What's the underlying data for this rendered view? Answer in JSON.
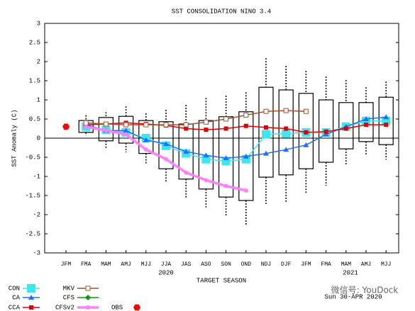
{
  "chart_data": {
    "type": "box-line",
    "title": "SST CONSOLIDATION NINO 3.4",
    "y_label": "SST Anomaly (C)",
    "x_label": "TARGET SEASON",
    "annotations": [
      "2020",
      "2021",
      "Sun 30-APR 2020",
      "微信号: YouDock"
    ],
    "categories": [
      "JFM",
      "FMA",
      "MAM",
      "AMJ",
      "MJJ",
      "JJA",
      "JAS",
      "ASO",
      "SON",
      "OND",
      "NDJ",
      "DJF",
      "JFM",
      "FMA",
      "MAM",
      "AMJ",
      "MJJ"
    ],
    "ylim": [
      -3,
      3
    ],
    "yticks": [
      -3,
      -2.5,
      -2,
      -1.5,
      -1,
      -0.5,
      0,
      0.5,
      1,
      1.5,
      2,
      2.5,
      3
    ],
    "boxes": {
      "high": [
        null,
        0.6,
        0.68,
        0.83,
        0.65,
        0.74,
        0.87,
        1.05,
        1.11,
        1.2,
        2.09,
        1.89,
        1.76,
        1.61,
        1.52,
        1.33,
        1.48
      ],
      "q3": [
        null,
        0.46,
        0.54,
        0.57,
        0.46,
        0.43,
        0.37,
        0.46,
        0.56,
        0.69,
        1.33,
        1.26,
        1.17,
        1.0,
        0.93,
        0.93,
        1.07
      ],
      "q1": [
        null,
        0.15,
        -0.07,
        -0.13,
        -0.4,
        -0.8,
        -1.07,
        -1.33,
        -1.54,
        -1.63,
        -1.02,
        -0.96,
        -0.8,
        -0.63,
        -0.28,
        -0.09,
        -0.17
      ],
      "low": [
        null,
        0.07,
        -0.28,
        -0.37,
        -0.7,
        -1.17,
        -1.57,
        -1.81,
        -2.04,
        -2.28,
        -1.72,
        -1.67,
        -1.43,
        -1.24,
        -0.69,
        -0.46,
        -0.56
      ]
    },
    "series": [
      {
        "name": "CON",
        "color": "#3ee6f0",
        "marker": "square",
        "values": [
          null,
          0.3,
          0.22,
          0.15,
          0.0,
          -0.2,
          -0.4,
          -0.55,
          -0.6,
          -0.55,
          0.1,
          0.12,
          0.15,
          0.15,
          0.3,
          0.45,
          0.45
        ]
      },
      {
        "name": "CA",
        "color": "#1e6fff",
        "marker": "triangle",
        "values": [
          null,
          0.35,
          0.2,
          0.2,
          -0.05,
          -0.15,
          -0.35,
          -0.45,
          -0.52,
          -0.48,
          -0.4,
          -0.3,
          -0.18,
          0.1,
          0.3,
          0.5,
          0.55
        ]
      },
      {
        "name": "CCA",
        "color": "#e00000",
        "marker": "small-square",
        "values": [
          null,
          0.35,
          0.37,
          0.4,
          0.37,
          0.33,
          0.25,
          0.22,
          0.25,
          0.32,
          0.28,
          0.25,
          0.15,
          0.17,
          0.25,
          0.35,
          0.35
        ]
      },
      {
        "name": "MKV",
        "color": "#a0522d",
        "marker": "open-square",
        "values": [
          null,
          0.4,
          0.37,
          0.35,
          0.35,
          0.35,
          0.35,
          0.42,
          0.5,
          0.6,
          0.7,
          0.72,
          0.7,
          null,
          null,
          null,
          null
        ]
      },
      {
        "name": "CFS",
        "color": "#00a000",
        "marker": "diamond",
        "values": [
          null,
          null,
          null,
          null,
          null,
          null,
          null,
          null,
          null,
          null,
          null,
          null,
          null,
          null,
          null,
          null,
          null
        ]
      },
      {
        "name": "CFSv2",
        "color": "#ff80ff",
        "marker": "circle",
        "values": [
          null,
          0.3,
          0.2,
          0.1,
          -0.3,
          -0.55,
          -0.9,
          -1.1,
          -1.25,
          -1.37,
          null,
          null,
          null,
          null,
          null,
          null,
          null
        ]
      },
      {
        "name": "OBS",
        "color": "#ff0000",
        "marker": "hexagon",
        "values": [
          0.3,
          null,
          null,
          null,
          null,
          null,
          null,
          null,
          null,
          null,
          null,
          null,
          null,
          null,
          null,
          null,
          null
        ]
      }
    ]
  }
}
